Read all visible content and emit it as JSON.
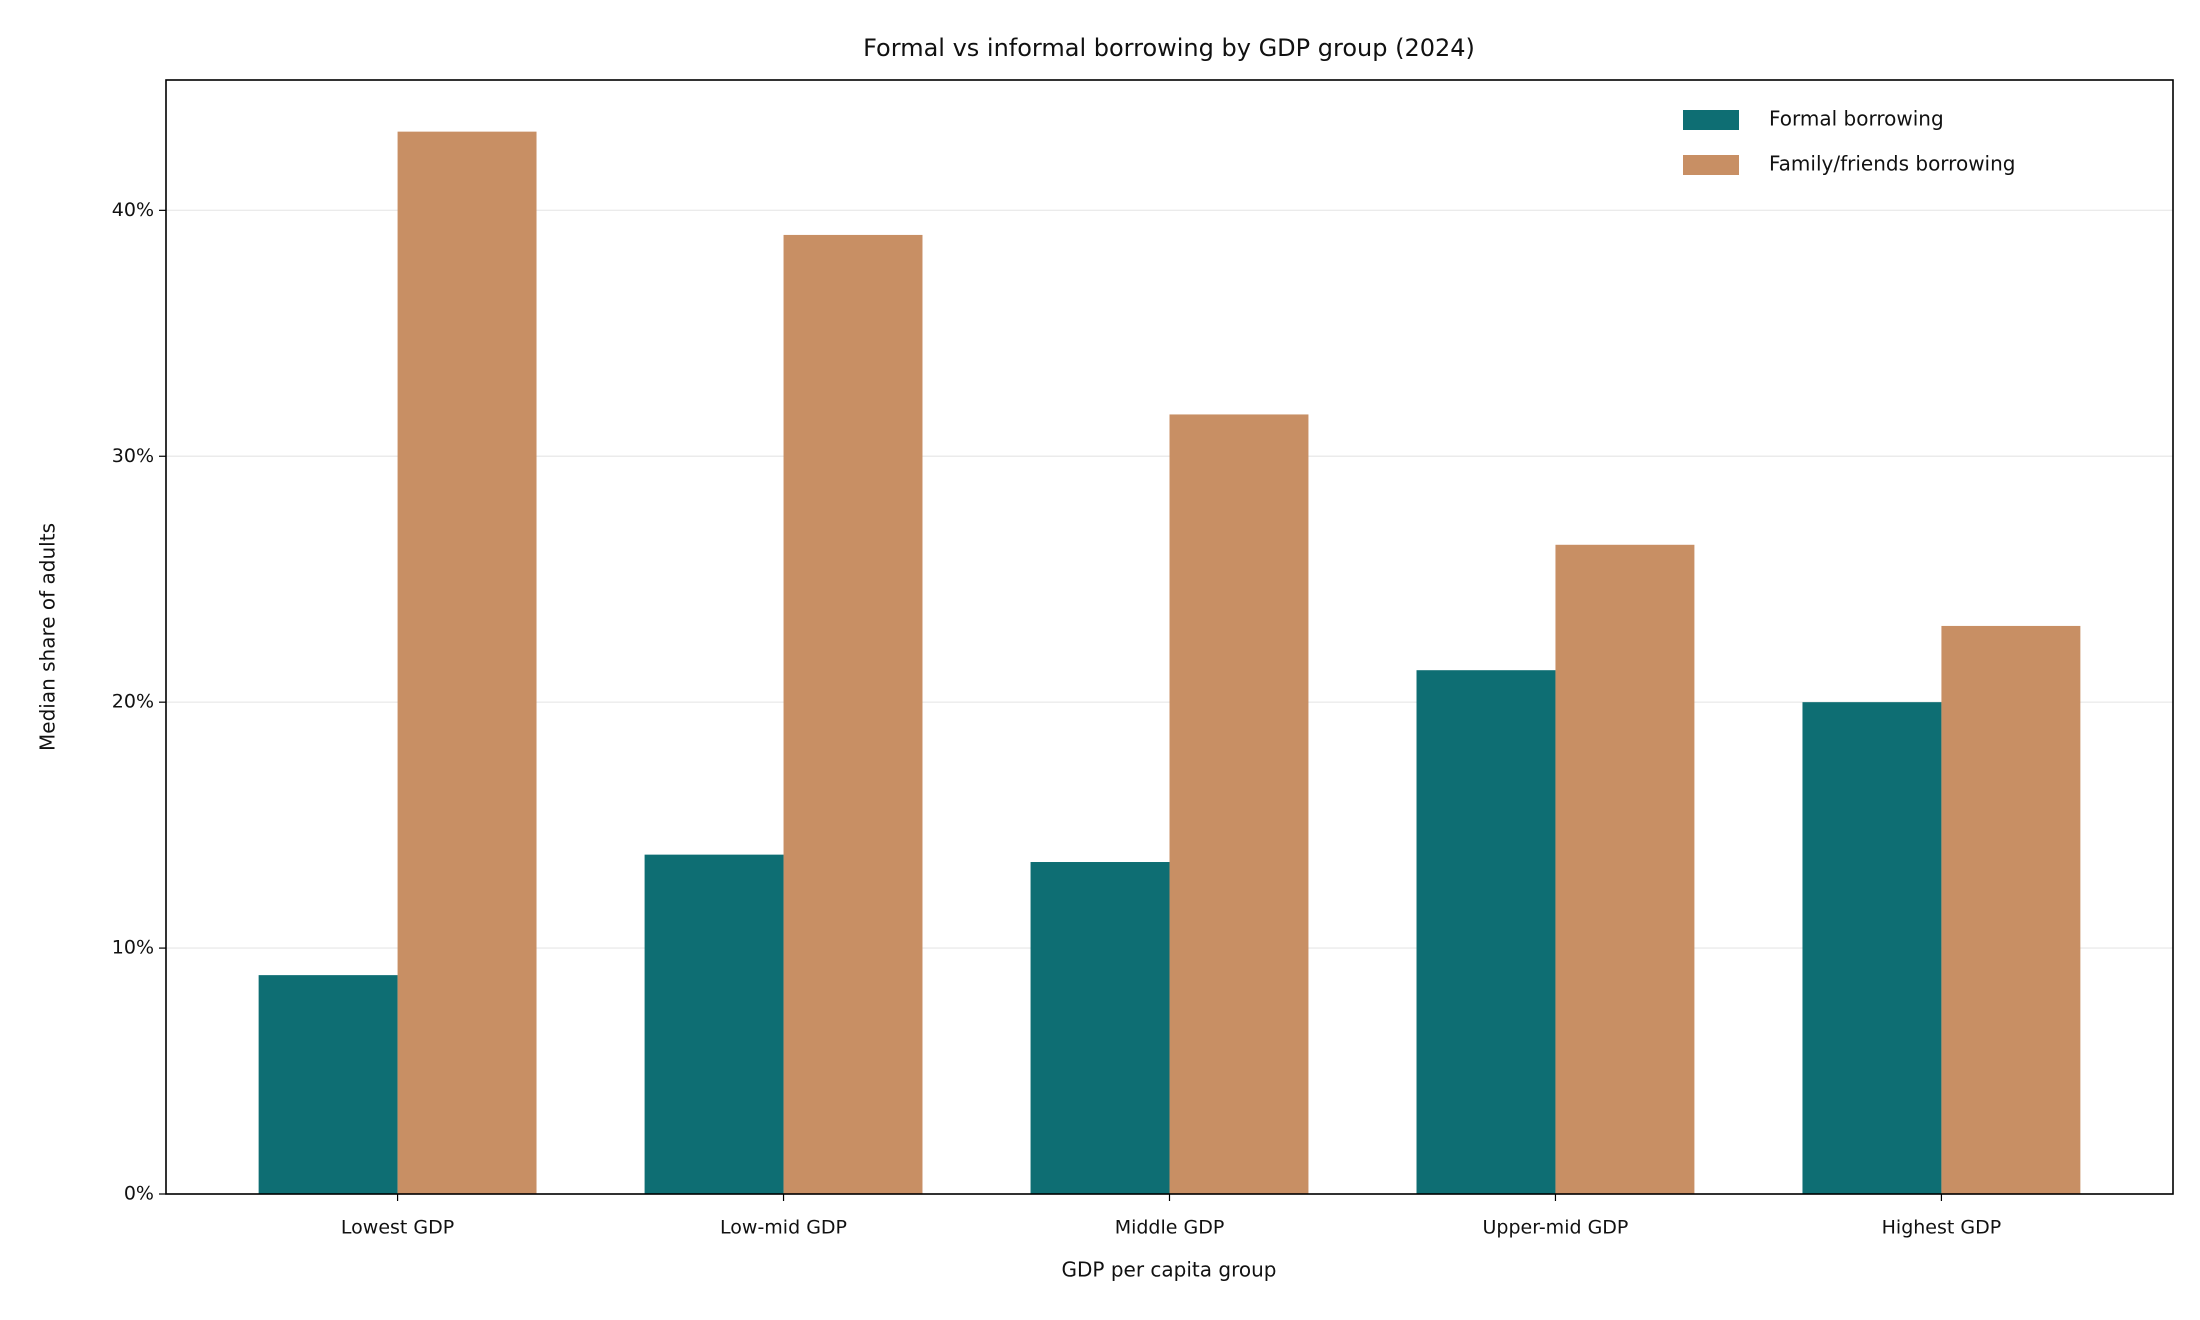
{
  "chart_data": {
    "type": "bar",
    "title": "Formal vs informal borrowing by GDP group (2024)",
    "x_label": "GDP per capita group",
    "y_label": "Median share of adults",
    "categories": [
      "Lowest GDP",
      "Low-mid GDP",
      "Middle GDP",
      "Upper-mid GDP",
      "Highest GDP"
    ],
    "series": [
      {
        "name": "Formal borrowing",
        "color": "#0e6e73",
        "values": [
          8.9,
          13.8,
          13.5,
          21.3,
          20.0
        ]
      },
      {
        "name": "Family/friends borrowing",
        "color": "#c88f64",
        "values": [
          43.2,
          39.0,
          31.7,
          26.4,
          23.1
        ]
      }
    ],
    "ylim": [
      0,
      45.3
    ],
    "yticks": [
      {
        "value": 0,
        "label": "0%"
      },
      {
        "value": 10,
        "label": "10%"
      },
      {
        "value": 20,
        "label": "20%"
      },
      {
        "value": 30,
        "label": "30%"
      },
      {
        "value": 40,
        "label": "40%"
      }
    ],
    "grid": true,
    "legend": "upper right"
  }
}
